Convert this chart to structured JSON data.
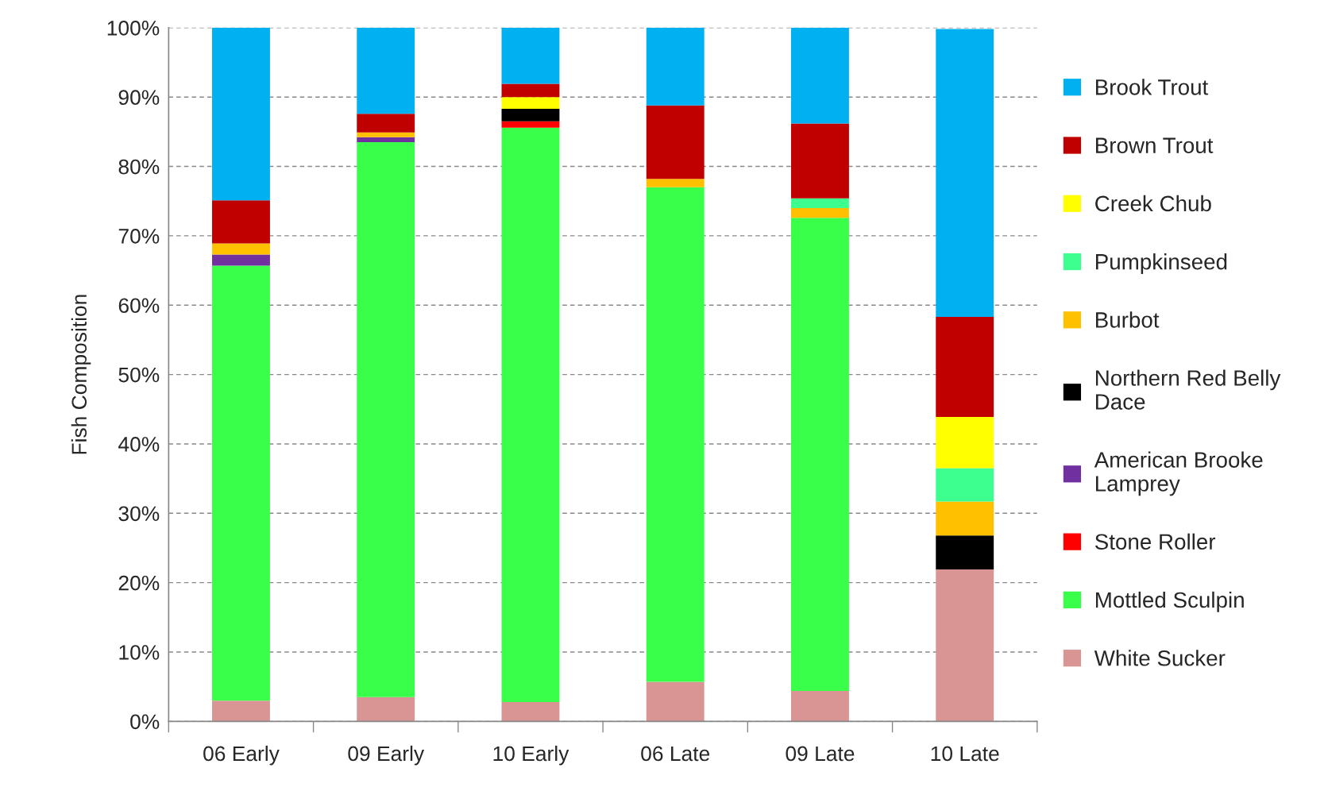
{
  "chart_data": {
    "type": "bar",
    "stacked": true,
    "ylabel": "Fish Composition",
    "categories": [
      "06 Early",
      "09 Early",
      "10 Early",
      "06 Late",
      "09 Late",
      "10 Late"
    ],
    "series": [
      {
        "name": "White Sucker",
        "color": "#d99594",
        "values": [
          3.0,
          3.5,
          2.8,
          5.7,
          4.4,
          21.9
        ]
      },
      {
        "name": "Mottled Sculpin",
        "color": "#39ff4a",
        "values": [
          62.7,
          80.0,
          82.8,
          71.3,
          68.2,
          0
        ]
      },
      {
        "name": "Stone Roller",
        "color": "#ff0000",
        "values": [
          0,
          0,
          0.9,
          0,
          0,
          0
        ]
      },
      {
        "name": "American Brooke Lamprey",
        "color": "#7030a0",
        "values": [
          1.6,
          0.7,
          0,
          0,
          0,
          0
        ]
      },
      {
        "name": "Northern Red Belly Dace",
        "color": "#000000",
        "values": [
          0,
          0,
          1.8,
          0,
          0,
          4.9
        ]
      },
      {
        "name": "Burbot",
        "color": "#ffc000",
        "values": [
          1.6,
          0.7,
          0,
          1.2,
          1.4,
          4.9
        ]
      },
      {
        "name": "Pumpkinseed",
        "color": "#3cff90",
        "values": [
          0,
          0,
          0,
          0,
          1.4,
          4.8
        ]
      },
      {
        "name": "Creek Chub",
        "color": "#ffff00",
        "values": [
          0,
          0,
          1.7,
          0,
          0,
          7.4
        ]
      },
      {
        "name": "Brown Trout",
        "color": "#c00000",
        "values": [
          6.2,
          2.7,
          1.9,
          10.6,
          10.8,
          14.4
        ]
      },
      {
        "name": "Brook Trout",
        "color": "#00b0f0",
        "values": [
          24.9,
          12.4,
          8.1,
          11.2,
          13.8,
          41.5
        ]
      }
    ],
    "ylim": [
      0,
      100
    ],
    "yticks": [
      {
        "value": 0,
        "label": "0%"
      },
      {
        "value": 10,
        "label": "10%"
      },
      {
        "value": 20,
        "label": "20%"
      },
      {
        "value": 30,
        "label": "30%"
      },
      {
        "value": 40,
        "label": "40%"
      },
      {
        "value": 50,
        "label": "50%"
      },
      {
        "value": 60,
        "label": "60%"
      },
      {
        "value": 70,
        "label": "70%"
      },
      {
        "value": 80,
        "label": "80%"
      },
      {
        "value": 90,
        "label": "90%"
      },
      {
        "value": 100,
        "label": "100%"
      }
    ],
    "grid": "y",
    "legend": "right"
  }
}
